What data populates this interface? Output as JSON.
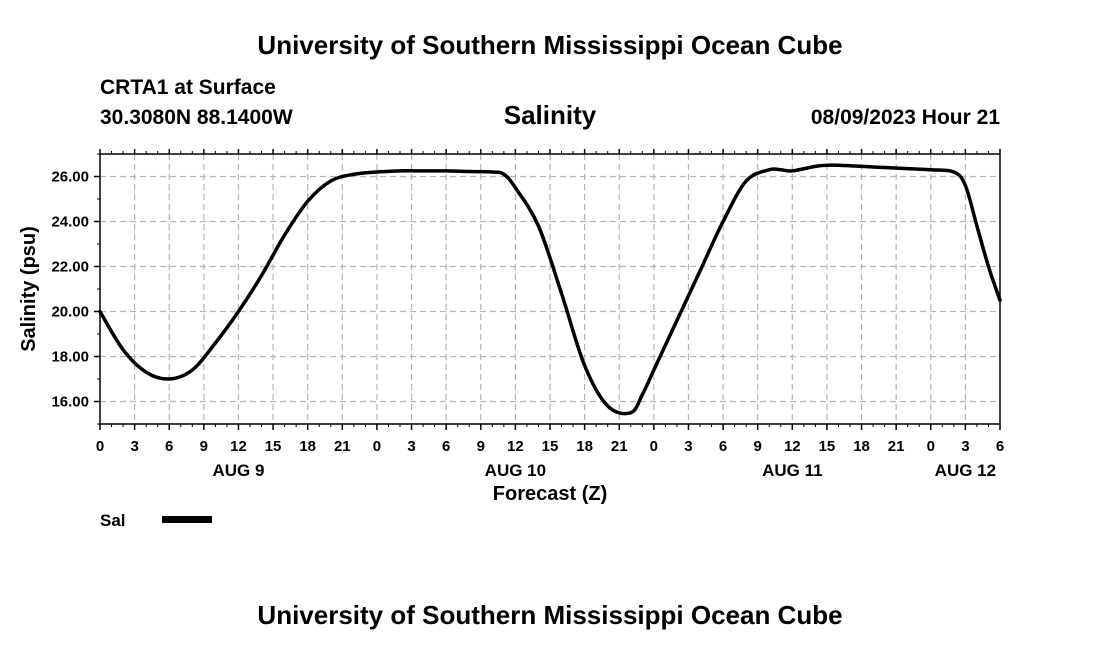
{
  "header": {
    "main_title": "University of Southern Mississippi Ocean Cube",
    "station": "CRTA1 at Surface",
    "coords": "30.3080N  88.1400W",
    "datetime": "08/09/2023 Hour 21"
  },
  "footer": {
    "title": "University of Southern Mississippi Ocean Cube"
  },
  "chart_data": {
    "type": "line",
    "title": "Salinity",
    "xlabel": "Forecast (Z)",
    "ylabel": "Salinity (psu)",
    "x_unit": "hours since AUG 9 00Z",
    "xlim": [
      0,
      78
    ],
    "ylim": [
      15,
      27
    ],
    "grid": true,
    "yticks": [
      16,
      18,
      20,
      22,
      24,
      26
    ],
    "ytick_labels": [
      "16.00",
      "18.00",
      "20.00",
      "22.00",
      "24.00",
      "26.00"
    ],
    "xticks": [
      0,
      3,
      6,
      9,
      12,
      15,
      18,
      21,
      24,
      27,
      30,
      33,
      36,
      39,
      42,
      45,
      48,
      51,
      54,
      57,
      60,
      63,
      66,
      69,
      72,
      75,
      78
    ],
    "xtick_labels": [
      "0",
      "3",
      "6",
      "9",
      "12",
      "15",
      "18",
      "21",
      "0",
      "3",
      "6",
      "9",
      "12",
      "15",
      "18",
      "21",
      "0",
      "3",
      "6",
      "9",
      "12",
      "15",
      "18",
      "21",
      "0",
      "3",
      "6"
    ],
    "day_labels": [
      {
        "x": 12,
        "label": "AUG 9"
      },
      {
        "x": 36,
        "label": "AUG 10"
      },
      {
        "x": 60,
        "label": "AUG 11"
      },
      {
        "x": 75,
        "label": "AUG 12"
      }
    ],
    "legend": {
      "label": "Sal",
      "position": "bottom-left"
    },
    "series": [
      {
        "name": "Sal",
        "x": [
          0,
          2,
          4,
          6,
          8,
          10,
          12,
          14,
          16,
          18,
          20,
          22,
          24,
          26,
          28,
          30,
          32,
          34,
          35,
          36,
          38,
          40,
          42,
          44,
          46,
          47,
          48,
          50,
          52,
          54,
          56,
          58,
          59,
          60,
          62,
          63,
          64,
          66,
          67,
          68,
          70,
          72,
          74,
          75,
          76,
          77,
          78
        ],
        "y": [
          20.0,
          18.3,
          17.3,
          17.0,
          17.4,
          18.6,
          20.0,
          21.6,
          23.4,
          24.9,
          25.8,
          26.1,
          26.2,
          26.25,
          26.25,
          26.25,
          26.22,
          26.2,
          26.1,
          25.5,
          23.8,
          20.8,
          17.6,
          15.8,
          15.5,
          16.3,
          17.4,
          19.6,
          21.8,
          24.0,
          25.8,
          26.3,
          26.3,
          26.25,
          26.45,
          26.5,
          26.5,
          26.45,
          26.42,
          26.4,
          26.35,
          26.3,
          26.2,
          25.6,
          23.8,
          22.0,
          20.5
        ]
      }
    ]
  }
}
